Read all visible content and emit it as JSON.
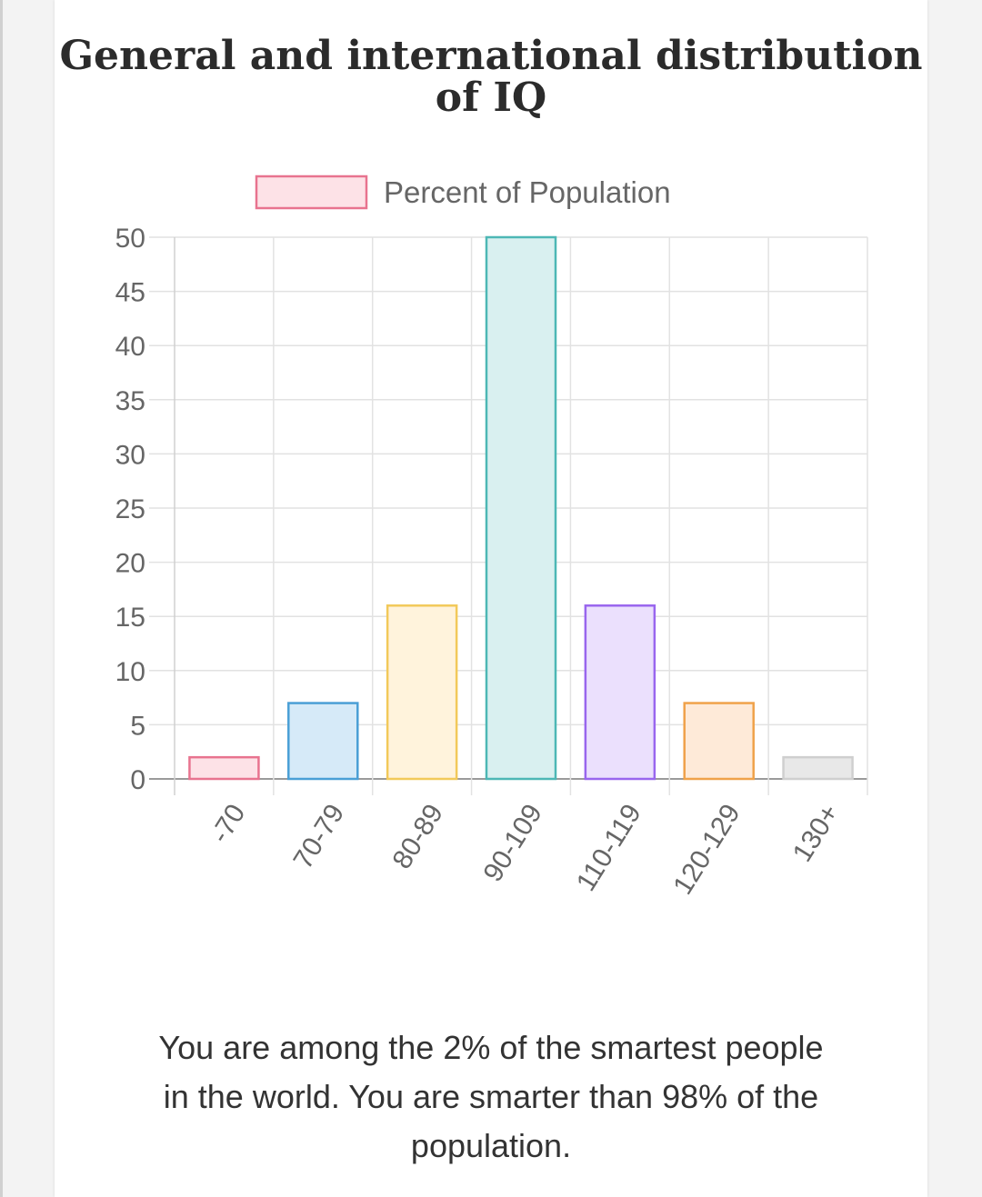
{
  "page": {
    "title_line1": "General and international distribution",
    "title_line2": "of IQ",
    "message": "You are among the 2% of the smartest people in the world. You are smarter than 98% of the population."
  },
  "chart_data": {
    "type": "bar",
    "title": "",
    "xlabel": "",
    "ylabel": "",
    "categories": [
      "-70",
      "70-79",
      "80-89",
      "90-109",
      "110-119",
      "120-129",
      "130+"
    ],
    "series": [
      {
        "name": "Percent of Population",
        "values": [
          2,
          7,
          16,
          50,
          16,
          7,
          2
        ]
      }
    ],
    "ylim": [
      0,
      50
    ],
    "yticks": [
      0,
      5,
      10,
      15,
      20,
      25,
      30,
      35,
      40,
      45,
      50
    ],
    "grid": true,
    "legend": "top",
    "colors": {
      "fills": [
        "#fde2e7",
        "#d6eaf8",
        "#fff3dc",
        "#d9f0f0",
        "#ebe0fd",
        "#feead8",
        "#e8e8e8"
      ],
      "borders": [
        "#e8738f",
        "#4a9fd6",
        "#f2c95a",
        "#4db7b5",
        "#9966ee",
        "#f0a24a",
        "#cfcfcf"
      ],
      "legend_fill": "#fde2e7",
      "legend_border": "#e8738f"
    }
  }
}
